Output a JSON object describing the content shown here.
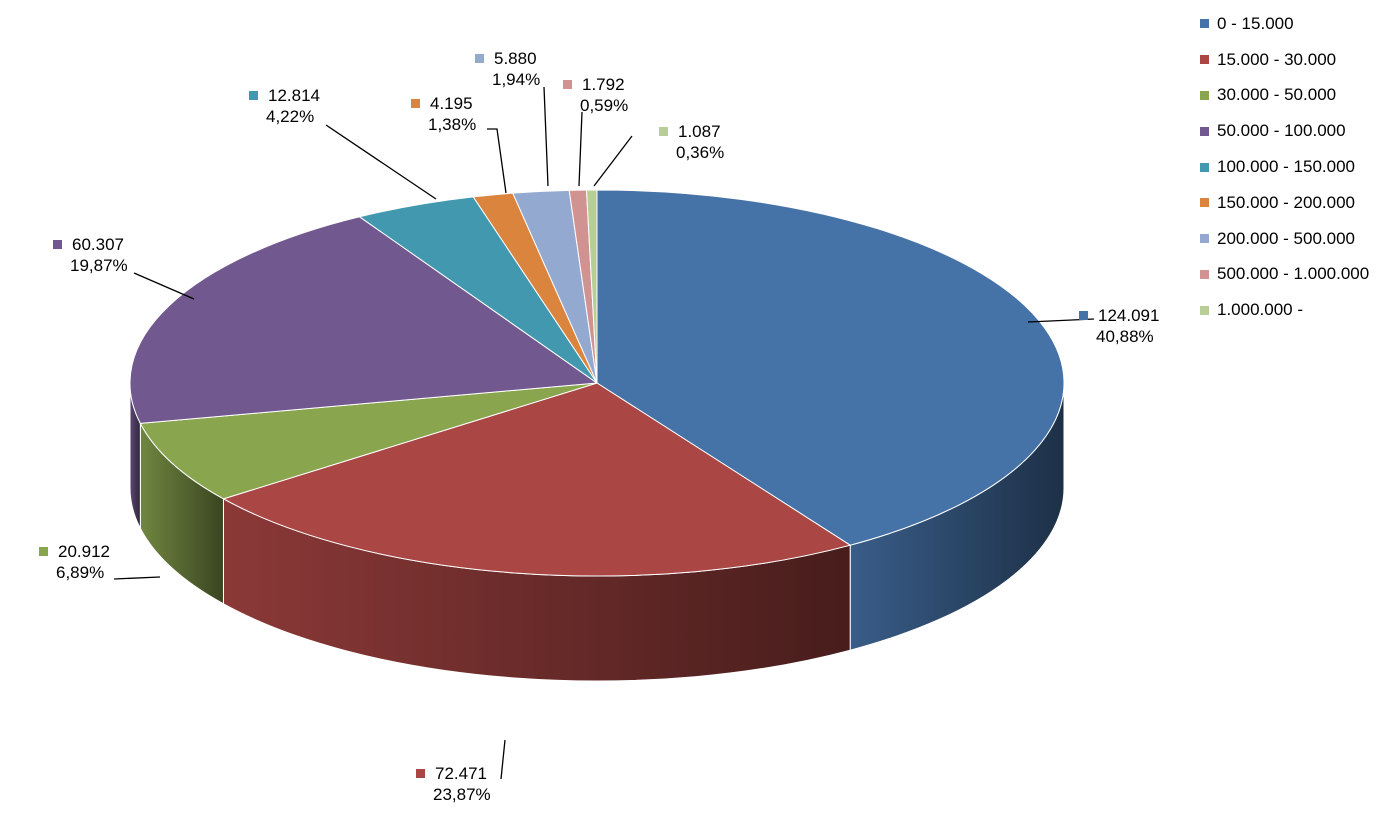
{
  "chart_data": {
    "type": "pie",
    "three_d": true,
    "title": "",
    "legend_position": "right",
    "categories": [
      "0 - 15.000",
      "15.000 - 30.000",
      "30.000 - 50.000",
      "50.000 - 100.000",
      "100.000 - 150.000",
      "150.000 - 200.000",
      "200.000 - 500.000",
      "500.000 - 1.000.000",
      "1.000.000 -"
    ],
    "values": [
      124091,
      72471,
      20912,
      60307,
      12814,
      4195,
      5880,
      1792,
      1087
    ],
    "value_labels": [
      "124.091",
      "72.471",
      "20.912",
      "60.307",
      "12.814",
      "4.195",
      "5.880",
      "1.792",
      "1.087"
    ],
    "percent_labels": [
      "40,88%",
      "23,87%",
      "6,89%",
      "19,87%",
      "4,22%",
      "1,38%",
      "1,94%",
      "0,59%",
      "0,36%"
    ],
    "colors": [
      "#4572A7",
      "#AA4643",
      "#89A54E",
      "#71588F",
      "#4198AF",
      "#DB843D",
      "#93A9CF",
      "#D19392",
      "#B9CD96"
    ]
  }
}
